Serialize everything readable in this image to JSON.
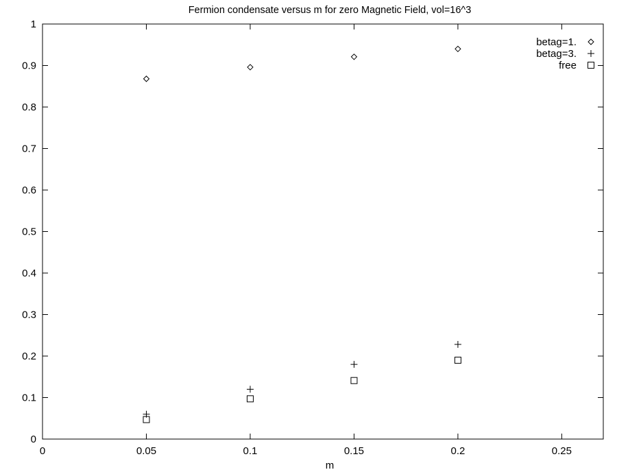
{
  "chart_data": {
    "type": "scatter",
    "title": "Fermion condensate versus m for zero Magnetic Field, vol=16^3",
    "xlabel": "m",
    "ylabel": "",
    "xlim": [
      0,
      0.27
    ],
    "ylim": [
      0,
      1
    ],
    "xticks": [
      0,
      0.05,
      0.1,
      0.15,
      0.2,
      0.25
    ],
    "xtick_labels": [
      "0",
      "0.05",
      "0.1",
      "0.15",
      "0.2",
      "0.25"
    ],
    "yticks": [
      0,
      0.1,
      0.2,
      0.3,
      0.4,
      0.5,
      0.6,
      0.7,
      0.8,
      0.9,
      1
    ],
    "ytick_labels": [
      "0",
      "0.1",
      "0.2",
      "0.3",
      "0.4",
      "0.5",
      "0.6",
      "0.7",
      "0.8",
      "0.9",
      "1"
    ],
    "grid": false,
    "legend_position": "top-right",
    "series": [
      {
        "name": "betag=1.",
        "marker": "diamond",
        "x": [
          0.05,
          0.1,
          0.15,
          0.2
        ],
        "y": [
          0.868,
          0.896,
          0.921,
          0.94
        ]
      },
      {
        "name": "betag=3.",
        "marker": "plus",
        "x": [
          0.05,
          0.1,
          0.15,
          0.2
        ],
        "y": [
          0.06,
          0.12,
          0.18,
          0.228
        ]
      },
      {
        "name": "free",
        "marker": "square",
        "x": [
          0.05,
          0.1,
          0.15,
          0.2
        ],
        "y": [
          0.047,
          0.097,
          0.141,
          0.19
        ]
      }
    ]
  }
}
